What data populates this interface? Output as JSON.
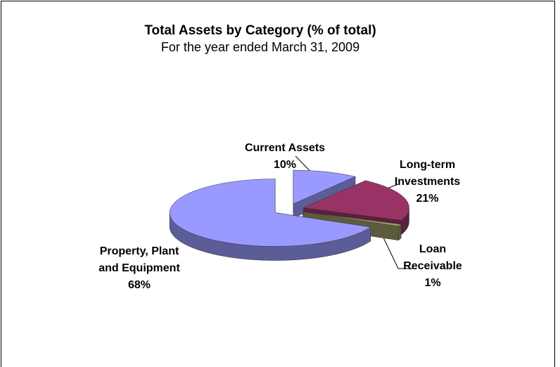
{
  "chart_data": {
    "type": "pie",
    "title": "Total Assets by Category  (% of total)",
    "subtitle": "For the year ended March 31, 2009",
    "categories": [
      "Current Assets",
      "Long-term Investments",
      "Loan Receivable",
      "Property, Plant and Equipment"
    ],
    "values": [
      10,
      21,
      1,
      68
    ],
    "value_labels": [
      "10%",
      "21%",
      "1%",
      "68%"
    ],
    "colors": [
      "#9999ff",
      "#993366",
      "#999966",
      "#9999ff"
    ]
  }
}
